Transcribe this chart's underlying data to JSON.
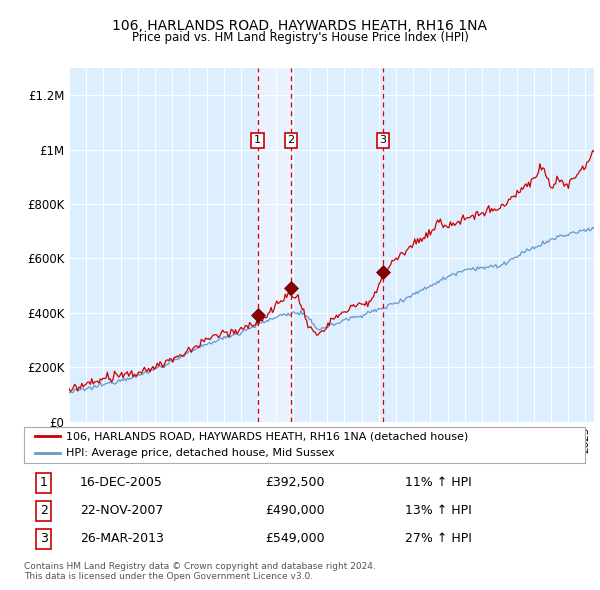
{
  "title1": "106, HARLANDS ROAD, HAYWARDS HEATH, RH16 1NA",
  "title2": "Price paid vs. HM Land Registry's House Price Index (HPI)",
  "ylim": [
    0,
    1300000
  ],
  "yticks": [
    0,
    200000,
    400000,
    600000,
    800000,
    1000000,
    1200000
  ],
  "ytick_labels": [
    "£0",
    "£200K",
    "£400K",
    "£600K",
    "£800K",
    "£1M",
    "£1.2M"
  ],
  "bg_color": "#ddeeff",
  "red_line_color": "#cc0000",
  "blue_line_color": "#6699cc",
  "sale_dates": [
    2005.96,
    2007.89,
    2013.23
  ],
  "sale_prices": [
    392500,
    490000,
    549000
  ],
  "sale_labels": [
    "1",
    "2",
    "3"
  ],
  "vline_color": "#dd0000",
  "xmin": 1995,
  "xmax": 2025.5,
  "legend_red_label": "106, HARLANDS ROAD, HAYWARDS HEATH, RH16 1NA (detached house)",
  "legend_blue_label": "HPI: Average price, detached house, Mid Sussex",
  "table_entries": [
    {
      "num": "1",
      "date": "16-DEC-2005",
      "price": "£392,500",
      "change": "11% ↑ HPI"
    },
    {
      "num": "2",
      "date": "22-NOV-2007",
      "price": "£490,000",
      "change": "13% ↑ HPI"
    },
    {
      "num": "3",
      "date": "26-MAR-2013",
      "price": "£549,000",
      "change": "27% ↑ HPI"
    }
  ],
  "footer": "Contains HM Land Registry data © Crown copyright and database right 2024.\nThis data is licensed under the Open Government Licence v3.0."
}
